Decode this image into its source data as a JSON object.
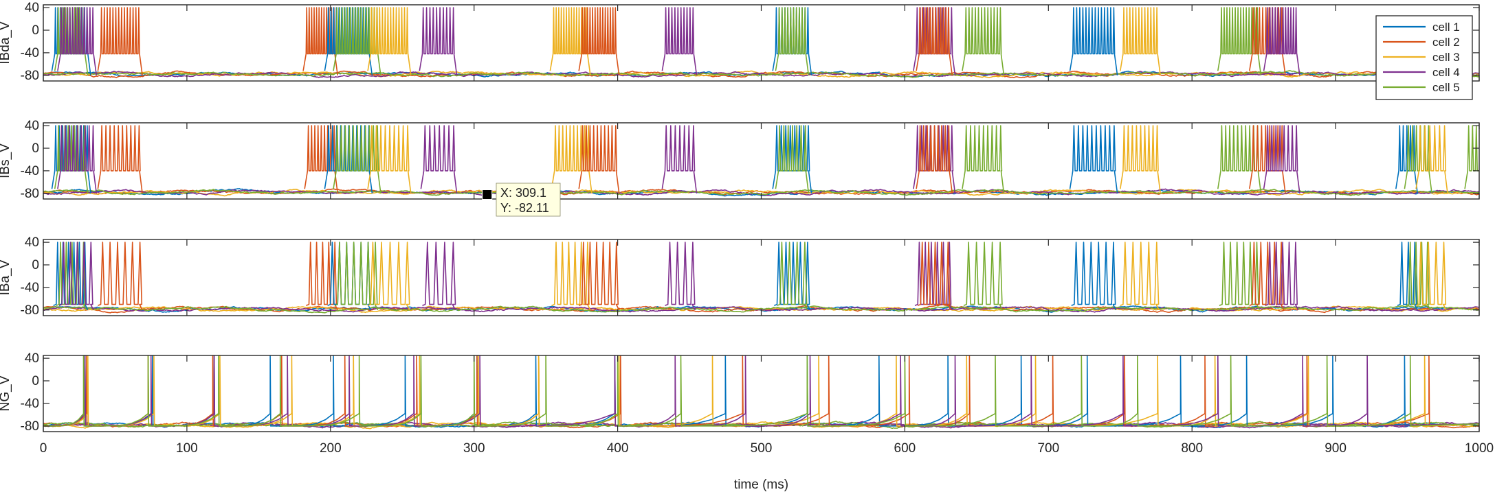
{
  "chart_data": [
    {
      "type": "line",
      "ylabel": "IBda_V",
      "ylim": [
        -90,
        45
      ],
      "yticks": [
        40,
        0,
        -40,
        -80
      ],
      "xlim": [
        0,
        1000
      ],
      "spike_peak": 40,
      "plateau": -42,
      "bursts": [
        {
          "series": 0,
          "start": 8,
          "end": 30,
          "n": 14
        },
        {
          "series": 4,
          "start": 10,
          "end": 28,
          "n": 12
        },
        {
          "series": 3,
          "start": 12,
          "end": 34,
          "n": 12
        },
        {
          "series": 1,
          "start": 40,
          "end": 66,
          "n": 14
        },
        {
          "series": 1,
          "start": 183,
          "end": 202,
          "n": 12
        },
        {
          "series": 0,
          "start": 198,
          "end": 226,
          "n": 16
        },
        {
          "series": 4,
          "start": 204,
          "end": 232,
          "n": 16
        },
        {
          "series": 2,
          "start": 228,
          "end": 253,
          "n": 14
        },
        {
          "series": 3,
          "start": 264,
          "end": 285,
          "n": 10
        },
        {
          "series": 2,
          "start": 355,
          "end": 378,
          "n": 14
        },
        {
          "series": 1,
          "start": 375,
          "end": 398,
          "n": 14
        },
        {
          "series": 3,
          "start": 433,
          "end": 452,
          "n": 10
        },
        {
          "series": 0,
          "start": 510,
          "end": 532,
          "n": 12
        },
        {
          "series": 4,
          "start": 512,
          "end": 530,
          "n": 10
        },
        {
          "series": 3,
          "start": 608,
          "end": 632,
          "n": 12
        },
        {
          "series": 1,
          "start": 610,
          "end": 630,
          "n": 12
        },
        {
          "series": 4,
          "start": 642,
          "end": 666,
          "n": 12
        },
        {
          "series": 0,
          "start": 717,
          "end": 745,
          "n": 14
        },
        {
          "series": 2,
          "start": 752,
          "end": 775,
          "n": 12
        },
        {
          "series": 4,
          "start": 820,
          "end": 845,
          "n": 14
        },
        {
          "series": 1,
          "start": 842,
          "end": 862,
          "n": 10
        },
        {
          "series": 3,
          "start": 852,
          "end": 872,
          "n": 12
        }
      ]
    },
    {
      "type": "line",
      "ylabel": "IBs_V",
      "ylim": [
        -90,
        45
      ],
      "yticks": [
        40,
        0,
        -40,
        -80
      ],
      "xlim": [
        0,
        1000
      ],
      "spike_peak": 40,
      "plateau": -40,
      "bursts": [
        {
          "series": 0,
          "start": 8,
          "end": 30,
          "n": 10
        },
        {
          "series": 4,
          "start": 10,
          "end": 28,
          "n": 9
        },
        {
          "series": 3,
          "start": 12,
          "end": 34,
          "n": 9
        },
        {
          "series": 1,
          "start": 40,
          "end": 66,
          "n": 10
        },
        {
          "series": 1,
          "start": 184,
          "end": 202,
          "n": 9
        },
        {
          "series": 0,
          "start": 198,
          "end": 226,
          "n": 11
        },
        {
          "series": 4,
          "start": 204,
          "end": 232,
          "n": 11
        },
        {
          "series": 2,
          "start": 228,
          "end": 253,
          "n": 9
        },
        {
          "series": 3,
          "start": 265,
          "end": 285,
          "n": 7
        },
        {
          "series": 2,
          "start": 356,
          "end": 379,
          "n": 10
        },
        {
          "series": 1,
          "start": 375,
          "end": 398,
          "n": 10
        },
        {
          "series": 3,
          "start": 433,
          "end": 452,
          "n": 7
        },
        {
          "series": 0,
          "start": 510,
          "end": 532,
          "n": 8
        },
        {
          "series": 4,
          "start": 512,
          "end": 530,
          "n": 7
        },
        {
          "series": 3,
          "start": 608,
          "end": 632,
          "n": 9
        },
        {
          "series": 1,
          "start": 610,
          "end": 630,
          "n": 9
        },
        {
          "series": 4,
          "start": 642,
          "end": 666,
          "n": 9
        },
        {
          "series": 0,
          "start": 717,
          "end": 745,
          "n": 10
        },
        {
          "series": 2,
          "start": 752,
          "end": 775,
          "n": 9
        },
        {
          "series": 4,
          "start": 820,
          "end": 845,
          "n": 10
        },
        {
          "series": 1,
          "start": 842,
          "end": 862,
          "n": 8
        },
        {
          "series": 3,
          "start": 852,
          "end": 872,
          "n": 8
        },
        {
          "series": 0,
          "start": 944,
          "end": 954,
          "n": 5
        },
        {
          "series": 4,
          "start": 950,
          "end": 964,
          "n": 6
        },
        {
          "series": 2,
          "start": 958,
          "end": 975,
          "n": 6
        },
        {
          "series": 4,
          "start": 992,
          "end": 1000,
          "n": 4
        }
      ]
    },
    {
      "type": "line",
      "ylabel": "IBa_V",
      "ylim": [
        -90,
        45
      ],
      "yticks": [
        40,
        0,
        -40,
        -80
      ],
      "xlim": [
        0,
        1000
      ],
      "spike_peak": 40,
      "plateau": -70,
      "bursts": [
        {
          "series": 0,
          "start": 9,
          "end": 28,
          "n": 6
        },
        {
          "series": 4,
          "start": 11,
          "end": 27,
          "n": 5
        },
        {
          "series": 3,
          "start": 13,
          "end": 32,
          "n": 5
        },
        {
          "series": 1,
          "start": 40,
          "end": 66,
          "n": 6
        },
        {
          "series": 1,
          "start": 185,
          "end": 202,
          "n": 5
        },
        {
          "series": 0,
          "start": 200,
          "end": 225,
          "n": 6
        },
        {
          "series": 4,
          "start": 205,
          "end": 230,
          "n": 6
        },
        {
          "series": 2,
          "start": 228,
          "end": 252,
          "n": 5
        },
        {
          "series": 3,
          "start": 266,
          "end": 284,
          "n": 4
        },
        {
          "series": 2,
          "start": 356,
          "end": 378,
          "n": 6
        },
        {
          "series": 1,
          "start": 375,
          "end": 398,
          "n": 6
        },
        {
          "series": 3,
          "start": 435,
          "end": 451,
          "n": 4
        },
        {
          "series": 0,
          "start": 511,
          "end": 531,
          "n": 5
        },
        {
          "series": 4,
          "start": 513,
          "end": 529,
          "n": 4
        },
        {
          "series": 3,
          "start": 609,
          "end": 630,
          "n": 6
        },
        {
          "series": 1,
          "start": 611,
          "end": 629,
          "n": 5
        },
        {
          "series": 4,
          "start": 643,
          "end": 665,
          "n": 5
        },
        {
          "series": 0,
          "start": 718,
          "end": 744,
          "n": 6
        },
        {
          "series": 2,
          "start": 752,
          "end": 774,
          "n": 5
        },
        {
          "series": 4,
          "start": 821,
          "end": 844,
          "n": 6
        },
        {
          "series": 1,
          "start": 842,
          "end": 861,
          "n": 5
        },
        {
          "series": 3,
          "start": 853,
          "end": 871,
          "n": 5
        },
        {
          "series": 0,
          "start": 945,
          "end": 954,
          "n": 3
        },
        {
          "series": 4,
          "start": 951,
          "end": 963,
          "n": 4
        },
        {
          "series": 2,
          "start": 958,
          "end": 974,
          "n": 4
        }
      ]
    },
    {
      "type": "line",
      "ylabel": "NG_V",
      "ylim": [
        -90,
        45
      ],
      "yticks": [
        40,
        0,
        -40,
        -80
      ],
      "xlim": [
        0,
        1000
      ],
      "spike_peak": 45,
      "plateau": null,
      "spike_trains": [
        {
          "series": 0,
          "times": [
            29,
            76,
            119,
            158,
            202,
            252,
            302,
            343,
            398,
            475,
            532,
            582,
            630,
            681,
            727,
            792,
            838,
            898,
            948
          ]
        },
        {
          "series": 1,
          "times": [
            30,
            73,
            118,
            166,
            210,
            260,
            302,
            345,
            402,
            487,
            547,
            603,
            645,
            703,
            753,
            809,
            880,
            965
          ]
        },
        {
          "series": 2,
          "times": [
            31,
            77,
            123,
            173,
            216,
            262,
            303,
            345,
            401,
            466,
            540,
            594,
            643,
            691,
            776,
            816,
            881,
            962
          ]
        },
        {
          "series": 3,
          "times": [
            29,
            75,
            119,
            170,
            213,
            258,
            304,
            398,
            440,
            489,
            534,
            597,
            635,
            688,
            752,
            818,
            877,
            922
          ]
        },
        {
          "series": 4,
          "times": [
            28,
            73,
            122,
            165,
            220,
            263,
            300,
            350,
            400,
            444,
            532,
            600,
            663,
            723,
            762,
            827,
            894,
            952
          ]
        }
      ]
    }
  ],
  "x_axis": {
    "ticks": [
      0,
      100,
      200,
      300,
      400,
      500,
      600,
      700,
      800,
      900,
      1000
    ],
    "label": "time (ms)"
  },
  "series": [
    {
      "name": "cell 1",
      "color": "#0072BD"
    },
    {
      "name": "cell 2",
      "color": "#D95319"
    },
    {
      "name": "cell 3",
      "color": "#EDB120"
    },
    {
      "name": "cell 4",
      "color": "#7E2F8E"
    },
    {
      "name": "cell 5",
      "color": "#77AC30"
    }
  ],
  "datatip": {
    "panel": 1,
    "x": 309.1,
    "y": -82.11,
    "x_text": "X: 309.1",
    "y_text": "Y: -82.11"
  }
}
